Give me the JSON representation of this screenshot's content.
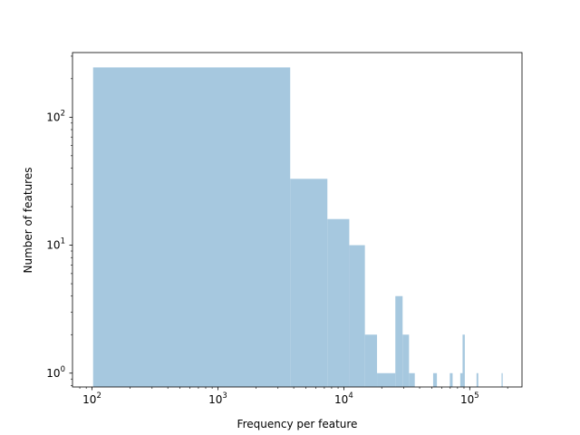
{
  "chart_data": {
    "type": "bar",
    "title": "",
    "xlabel": "Frequency per feature",
    "ylabel": "Number of features",
    "xscale": "log",
    "yscale": "log",
    "xlim": [
      70,
      260000
    ],
    "ylim": [
      0.78,
      320
    ],
    "grid": false,
    "bar_color": "#a6c8df",
    "x_ticks": [
      {
        "value": 100,
        "base": "10",
        "exp": "2"
      },
      {
        "value": 1000,
        "base": "10",
        "exp": "3"
      },
      {
        "value": 10000,
        "base": "10",
        "exp": "4"
      },
      {
        "value": 100000,
        "base": "10",
        "exp": "5"
      }
    ],
    "y_ticks": [
      {
        "value": 1,
        "base": "10",
        "exp": "0"
      },
      {
        "value": 10,
        "base": "10",
        "exp": "1"
      },
      {
        "value": 100,
        "base": "10",
        "exp": "2"
      }
    ],
    "bins": [
      {
        "x0": 102,
        "x1": 3750,
        "count": 245
      },
      {
        "x0": 3750,
        "x1": 7400,
        "count": 33
      },
      {
        "x0": 7400,
        "x1": 11050,
        "count": 16
      },
      {
        "x0": 11050,
        "x1": 14700,
        "count": 10
      },
      {
        "x0": 14700,
        "x1": 18350,
        "count": 2
      },
      {
        "x0": 18350,
        "x1": 25650,
        "count": 1
      },
      {
        "x0": 25650,
        "x1": 29300,
        "count": 4
      },
      {
        "x0": 29300,
        "x1": 32950,
        "count": 2
      },
      {
        "x0": 32950,
        "x1": 36600,
        "count": 1
      },
      {
        "x0": 51200,
        "x1": 54850,
        "count": 1
      },
      {
        "x0": 69450,
        "x1": 73100,
        "count": 1
      },
      {
        "x0": 84050,
        "x1": 87700,
        "count": 1
      },
      {
        "x0": 87700,
        "x1": 91350,
        "count": 2
      },
      {
        "x0": 113250,
        "x1": 116900,
        "count": 1
      },
      {
        "x0": 178950,
        "x1": 182600,
        "count": 1
      }
    ]
  }
}
